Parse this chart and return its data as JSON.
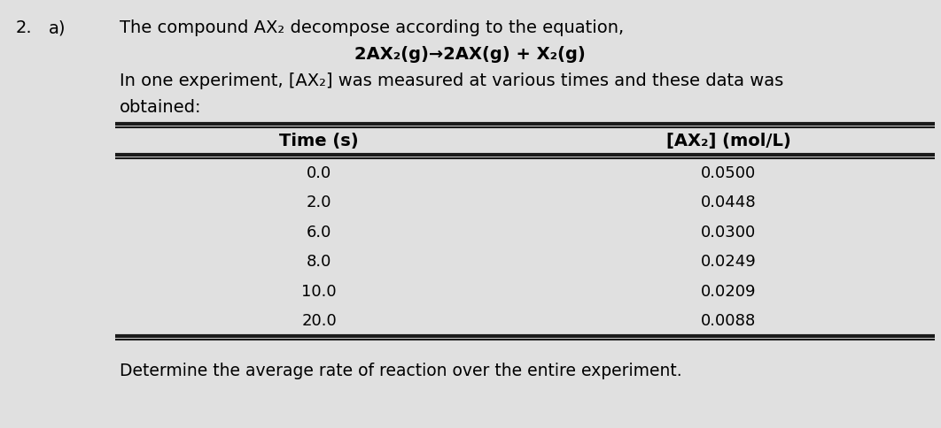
{
  "background_color": "#c8c8c8",
  "content_bg": "#e8e8e8",
  "number_label": "2.",
  "part_label": "a)",
  "title_line1": "The compound AX₂ decompose according to the equation,",
  "title_line2": "2AX₂(g)→2AX(g) + X₂(g)",
  "title_line3": "In one experiment, [AX₂] was measured at various times and these data was",
  "title_line4": "obtained:",
  "col1_header": "Time (s)",
  "col2_header": "[AX₂] (mol/L)",
  "time_values": [
    "0.0",
    "2.0",
    "6.0",
    "8.0",
    "10.0",
    "20.0"
  ],
  "conc_values": [
    "0.0500",
    "0.0448",
    "0.0300",
    "0.0249",
    "0.0209",
    "0.0088"
  ],
  "footer_text": "Determine the average rate of reaction over the entire experiment.",
  "text_color": "#000000",
  "title_fontsize": 14,
  "header_fontsize": 14,
  "body_fontsize": 13,
  "footer_fontsize": 13.5,
  "num_fontsize": 14
}
